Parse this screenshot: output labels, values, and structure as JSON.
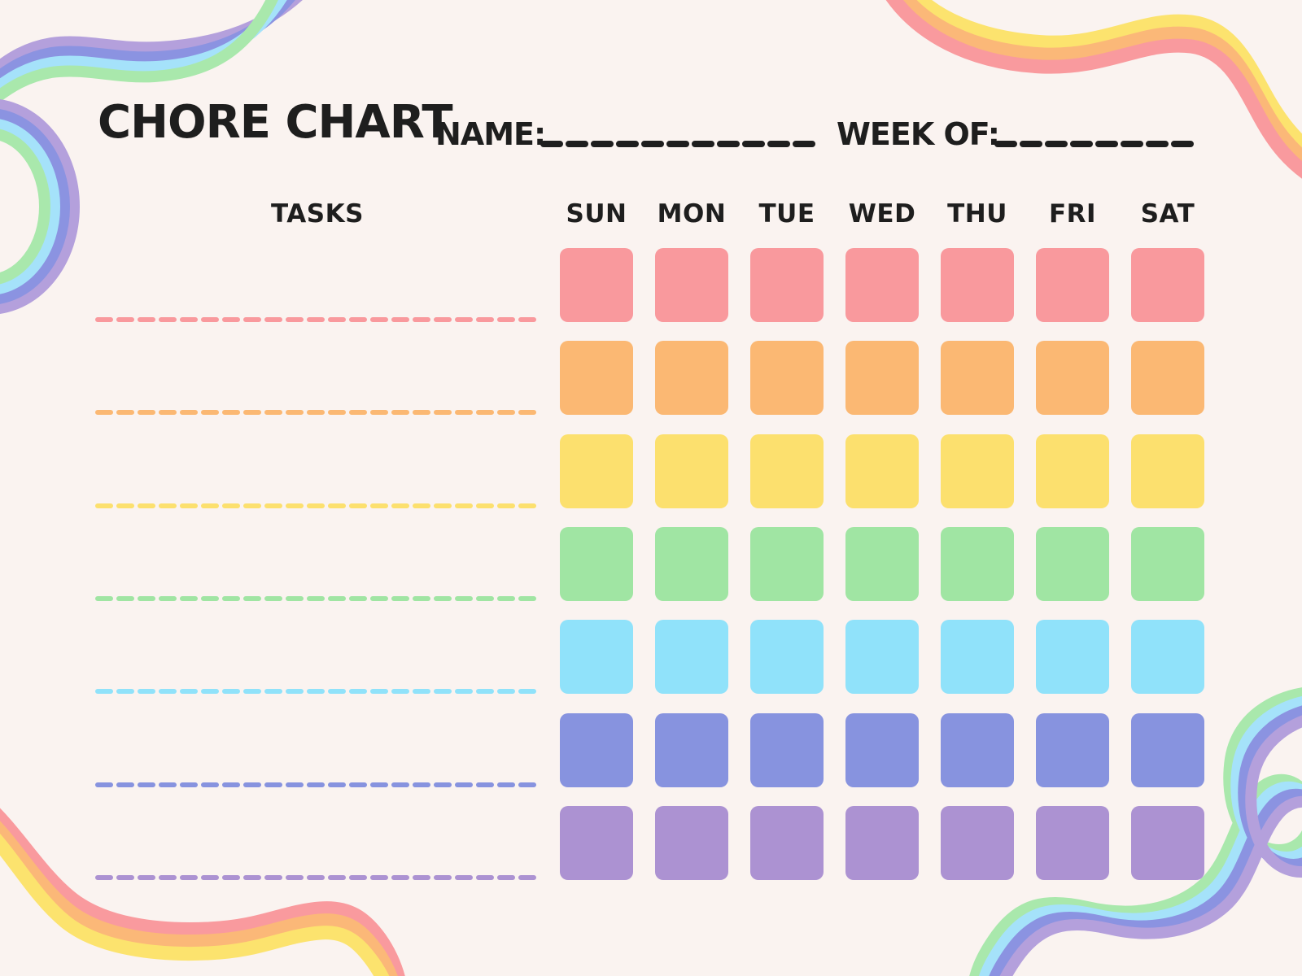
{
  "header": {
    "title": "CHORE CHART",
    "name_label": "NAME:",
    "name_value": "",
    "week_label": "WEEK OF:",
    "week_value": ""
  },
  "table": {
    "tasks_label": "TASKS",
    "days": [
      "SUN",
      "MON",
      "TUE",
      "WED",
      "THU",
      "FRI",
      "SAT"
    ],
    "rows": [
      {
        "task": "",
        "color": "#F9999D"
      },
      {
        "task": "",
        "color": "#FBB873"
      },
      {
        "task": "",
        "color": "#FCE06E"
      },
      {
        "task": "",
        "color": "#A0E5A3"
      },
      {
        "task": "",
        "color": "#90E2FA"
      },
      {
        "task": "",
        "color": "#8793DF"
      },
      {
        "task": "",
        "color": "#AC92D2"
      }
    ]
  },
  "decor": {
    "background": "#FAF3F0",
    "ink": "#1E1E1E",
    "rainbow_cool": [
      "#B4A0DC",
      "#8B93E1",
      "#A5E2FA",
      "#A9E8AC"
    ],
    "rainbow_warm": [
      "#FCE36E",
      "#FBB878",
      "#F99A9E"
    ]
  }
}
